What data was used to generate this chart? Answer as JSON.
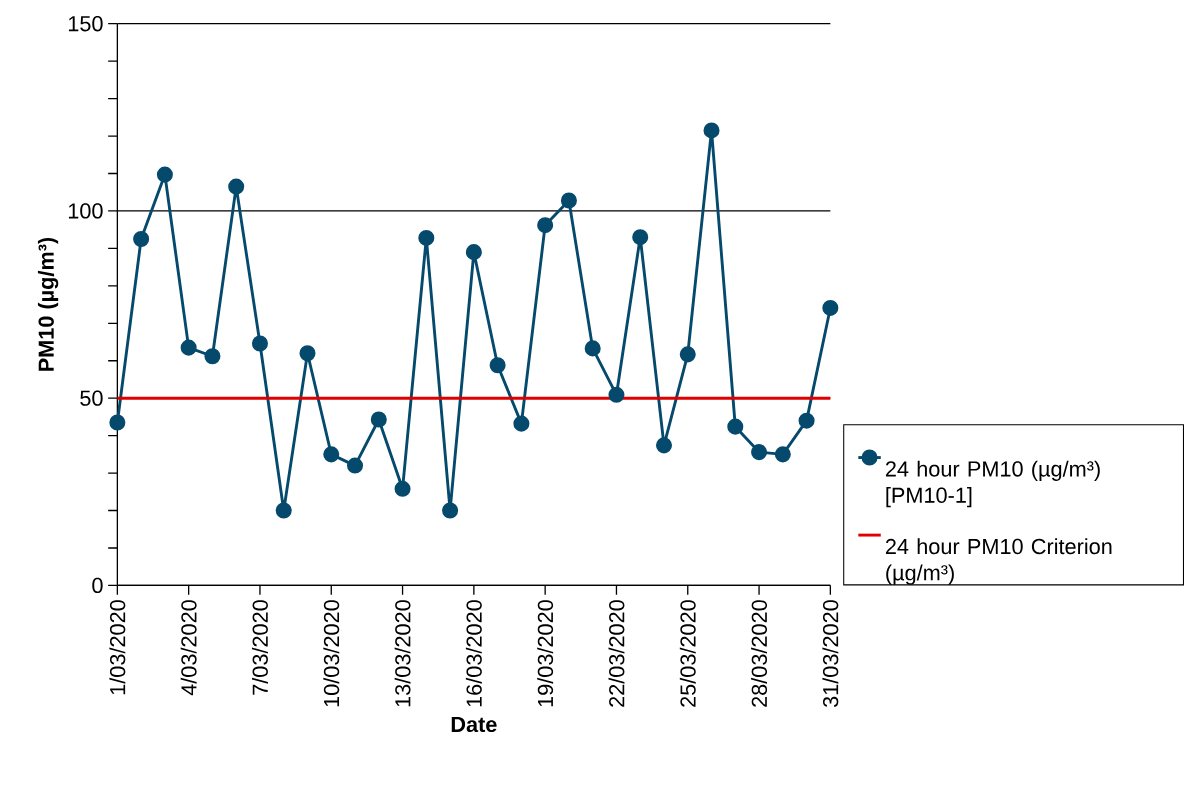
{
  "chart_data": {
    "type": "line",
    "xlabel": "Date",
    "ylabel": "PM10 (µg/m³)",
    "x": [
      "2020-03-01",
      "2020-03-02",
      "2020-03-03",
      "2020-03-04",
      "2020-03-05",
      "2020-03-06",
      "2020-03-07",
      "2020-03-08",
      "2020-03-09",
      "2020-03-10",
      "2020-03-11",
      "2020-03-12",
      "2020-03-13",
      "2020-03-14",
      "2020-03-15",
      "2020-03-16",
      "2020-03-17",
      "2020-03-18",
      "2020-03-19",
      "2020-03-20",
      "2020-03-21",
      "2020-03-22",
      "2020-03-23",
      "2020-03-24",
      "2020-03-25",
      "2020-03-26",
      "2020-03-27",
      "2020-03-28",
      "2020-03-29",
      "2020-03-30",
      "2020-03-31"
    ],
    "series": [
      {
        "name": "24 hour PM10 (µg/m³) [PM10-1]",
        "color": "#054a6c",
        "values": [
          43.5,
          92.5,
          109.7,
          63.5,
          61.2,
          106.5,
          64.6,
          20,
          62,
          35,
          32,
          44.3,
          25.8,
          92.8,
          20,
          89,
          58.8,
          43.2,
          96.2,
          102.8,
          63.3,
          50.9,
          93,
          37.4,
          61.7,
          121.5,
          42.4,
          35.6,
          35,
          44,
          74.1
        ]
      }
    ],
    "ref_lines": [
      {
        "axis": "y",
        "value": 50,
        "label": "24 hour PM10 Criterion (µg/m³)",
        "color": "#e00000",
        "line_style": "solid"
      }
    ],
    "xlim": [
      "2020-03-01",
      "2020-03-31"
    ],
    "xticks": [
      {
        "value": "2020-03-01",
        "label": "1/03/2020"
      },
      {
        "value": "2020-03-04",
        "label": "4/03/2020"
      },
      {
        "value": "2020-03-07",
        "label": "7/03/2020"
      },
      {
        "value": "2020-03-10",
        "label": "10/03/2020"
      },
      {
        "value": "2020-03-13",
        "label": "13/03/2020"
      },
      {
        "value": "2020-03-16",
        "label": "16/03/2020"
      },
      {
        "value": "2020-03-19",
        "label": "19/03/2020"
      },
      {
        "value": "2020-03-22",
        "label": "22/03/2020"
      },
      {
        "value": "2020-03-25",
        "label": "25/03/2020"
      },
      {
        "value": "2020-03-28",
        "label": "28/03/2020"
      },
      {
        "value": "2020-03-31",
        "label": "31/03/2020"
      }
    ],
    "ylim": [
      0,
      150
    ],
    "yticks": [
      0,
      {
        "value": 10,
        "label": null
      },
      {
        "value": 20,
        "label": null
      },
      {
        "value": 30,
        "label": null
      },
      {
        "value": 40,
        "label": null
      },
      50,
      {
        "value": 60,
        "label": null
      },
      {
        "value": 70,
        "label": null
      },
      {
        "value": 80,
        "label": null
      },
      {
        "value": 90,
        "label": null
      },
      100,
      {
        "value": 110,
        "label": null
      },
      {
        "value": 120,
        "label": null
      },
      {
        "value": 130,
        "label": null
      },
      {
        "value": 140,
        "label": null
      },
      150
    ],
    "grid": "y",
    "legend": "right",
    "marker": "circle",
    "line_style": "solid"
  }
}
